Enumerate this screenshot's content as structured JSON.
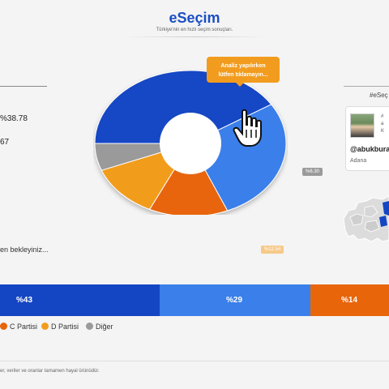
{
  "header": {
    "brand": "eSeçim",
    "tagline": "Türkiye'nin en hızlı seçim sonuçları."
  },
  "left_panel": {
    "percent_text": "%38.78",
    "count_text": "67",
    "waiting_text": "en bekleyiniz..."
  },
  "tooltip": {
    "line1": "Analiz yapılırken",
    "line2": "lütfen tıklamayın..."
  },
  "chart_data": {
    "type": "pie",
    "slices": [
      {
        "label": "%43",
        "value": 43,
        "color": "#1446c4"
      },
      {
        "label": "%29",
        "value": 29,
        "color": "#3a7fea"
      },
      {
        "label": "%14",
        "value": 14,
        "color": "#e8650a"
      },
      {
        "label": "%12.54",
        "value": 12.54,
        "color": "#f29c1f"
      },
      {
        "label": "%6.30",
        "value": 6.3,
        "color": "#9a9a9a"
      }
    ],
    "slice_label_grey": "%6.30",
    "slice_label_orange": "%12.54"
  },
  "bars": [
    {
      "label": "%43",
      "color": "#1446c4"
    },
    {
      "label": "%29",
      "color": "#3a7fea"
    },
    {
      "label": "%14",
      "color": "#e8650a"
    }
  ],
  "legend": [
    {
      "label": "C Partisi",
      "color": "#e8650a"
    },
    {
      "label": "D Partisi",
      "color": "#f29c1f"
    },
    {
      "label": "Diğer",
      "color": "#9a9a9a"
    }
  ],
  "right_panel": {
    "hashtag": "#eSeç",
    "tweet_text": "#\na\nK",
    "username": "@abukbura",
    "city": "Adana"
  },
  "footer": {
    "disclaimer": "er, veriler ve oranlar tamamen hayal ürünüdür."
  },
  "icons": {
    "cursor": "hand-pointer-icon",
    "map": "turkey-map-icon"
  }
}
